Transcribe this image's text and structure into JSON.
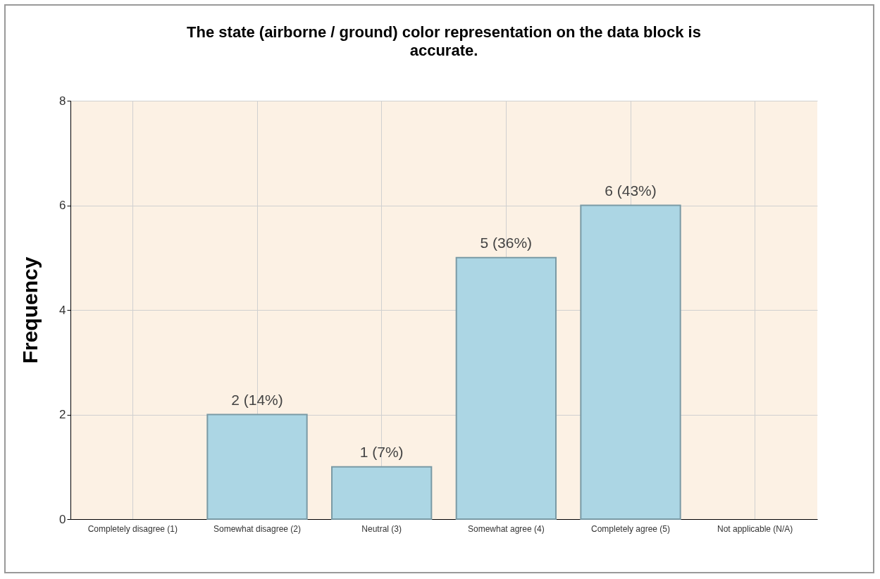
{
  "chart_data": {
    "type": "bar",
    "title": "The state (airborne / ground) color representation on the data block is accurate.",
    "ylabel": "Frequency",
    "categories": [
      "Completely disagree (1)",
      "Somewhat disagree (2)",
      "Neutral (3)",
      "Somewhat agree (4)",
      "Completely agree (5)",
      "Not applicable (N/A)"
    ],
    "values": [
      0,
      2,
      1,
      5,
      6,
      0
    ],
    "value_labels": [
      null,
      "2 (14%)",
      "1 (7%)",
      "5 (36%)",
      "6 (43%)",
      null
    ],
    "color": "#acd6e4",
    "ylim": [
      0,
      8
    ],
    "yticks": [
      0,
      2,
      4,
      6,
      8
    ],
    "grid": true
  }
}
